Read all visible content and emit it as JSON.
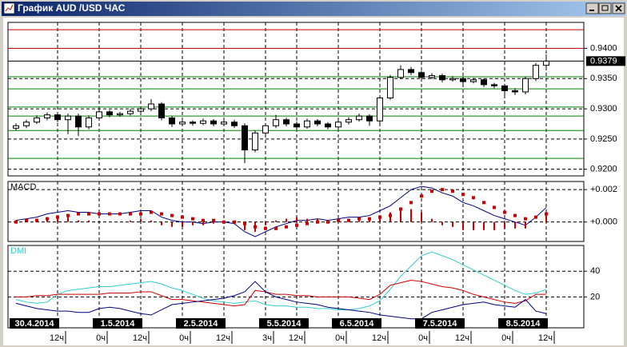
{
  "window": {
    "title": "График AUD /USD ЧАС"
  },
  "chart_data": [
    {
      "type": "candlestick",
      "categories": [
        null,
        null,
        null,
        null,
        "12ч",
        null,
        null,
        null,
        "0ч",
        null,
        null,
        null,
        "12ч",
        null,
        null,
        null,
        "0ч",
        null,
        null,
        null,
        "12ч",
        null,
        null,
        null,
        "3ч",
        null,
        null,
        "12ч",
        null,
        null,
        null,
        "0ч",
        null,
        null,
        null,
        "12ч",
        null,
        null,
        null,
        "0ч",
        null,
        null,
        null,
        "12ч",
        null,
        null,
        null,
        "0ч",
        null,
        null,
        null,
        "12ч"
      ],
      "dates": [
        "30.4.2014",
        null,
        null,
        null,
        null,
        null,
        null,
        null,
        "1.5.2014",
        null,
        null,
        null,
        null,
        null,
        null,
        null,
        "2.5.2014",
        null,
        null,
        null,
        null,
        null,
        null,
        null,
        "5.5.2014",
        null,
        null,
        null,
        null,
        null,
        null,
        "6.5.2014",
        null,
        null,
        null,
        null,
        null,
        null,
        null,
        "7.5.2014",
        null,
        null,
        null,
        null,
        null,
        null,
        null,
        "8.5.2014",
        null,
        null,
        null,
        null
      ],
      "open": [
        0.9268,
        0.9272,
        0.9278,
        0.9285,
        0.929,
        0.9282,
        0.9288,
        0.927,
        0.9285,
        0.9295,
        0.929,
        0.9292,
        0.9296,
        0.93,
        0.9308,
        0.9285,
        0.9275,
        0.9278,
        0.9276,
        0.928,
        0.9275,
        0.9278,
        0.9272,
        0.9232,
        0.926,
        0.9272,
        0.9282,
        0.9275,
        0.927,
        0.928,
        0.9275,
        0.927,
        0.9278,
        0.9282,
        0.9288,
        0.928,
        0.9318,
        0.9352,
        0.9365,
        0.936,
        0.9352,
        0.9355,
        0.9348,
        0.935,
        0.9345,
        0.9348,
        0.934,
        0.9338,
        0.933,
        0.9328,
        0.935,
        0.9372
      ],
      "high": [
        0.9276,
        0.9282,
        0.9289,
        0.9294,
        0.9294,
        0.9292,
        0.9292,
        0.9289,
        0.9299,
        0.9298,
        0.9295,
        0.93,
        0.9304,
        0.9316,
        0.9311,
        0.9288,
        0.9282,
        0.9281,
        0.9284,
        0.9283,
        0.9281,
        0.9282,
        0.9276,
        0.9264,
        0.9276,
        0.929,
        0.9285,
        0.9279,
        0.9284,
        0.9283,
        0.9278,
        0.9281,
        0.9286,
        0.9292,
        0.9291,
        0.9322,
        0.9356,
        0.9372,
        0.9369,
        0.9363,
        0.9359,
        0.9358,
        0.9354,
        0.9353,
        0.9351,
        0.935,
        0.9343,
        0.9341,
        0.9334,
        0.9353,
        0.9376,
        0.939
      ],
      "low": [
        0.9264,
        0.9268,
        0.9275,
        0.9281,
        0.9278,
        0.9258,
        0.9255,
        0.9266,
        0.9281,
        0.9286,
        0.9287,
        0.9289,
        0.9293,
        0.9296,
        0.9281,
        0.927,
        0.9272,
        0.9272,
        0.9273,
        0.9271,
        0.9272,
        0.9268,
        0.921,
        0.9228,
        0.9256,
        0.9268,
        0.9271,
        0.9266,
        0.9267,
        0.9271,
        0.9266,
        0.9266,
        0.9274,
        0.9279,
        0.9272,
        0.9276,
        0.9315,
        0.9349,
        0.9356,
        0.9348,
        0.9349,
        0.9344,
        0.9345,
        0.9341,
        0.9342,
        0.9336,
        0.9334,
        0.9318,
        0.9323,
        0.9324,
        0.9346,
        0.9368
      ],
      "close": [
        0.9272,
        0.9278,
        0.9285,
        0.929,
        0.9282,
        0.9288,
        0.927,
        0.9285,
        0.9295,
        0.929,
        0.9292,
        0.9296,
        0.93,
        0.9308,
        0.9285,
        0.9275,
        0.9278,
        0.9276,
        0.928,
        0.9275,
        0.9278,
        0.9272,
        0.9232,
        0.926,
        0.9272,
        0.9282,
        0.9275,
        0.927,
        0.928,
        0.9275,
        0.927,
        0.9278,
        0.9282,
        0.9288,
        0.928,
        0.9318,
        0.9352,
        0.9365,
        0.936,
        0.9352,
        0.9355,
        0.9348,
        0.935,
        0.9345,
        0.9348,
        0.934,
        0.9338,
        0.933,
        0.9328,
        0.935,
        0.9372,
        0.9379
      ],
      "up_color": "#ffffff",
      "down_color": "#000000",
      "ylim": [
        0.9189,
        0.9443
      ],
      "yticks": [
        {
          "value": 0.92,
          "label": "0.9200"
        },
        {
          "value": 0.925,
          "label": "0.9250"
        },
        {
          "value": 0.93,
          "label": "0.9300"
        },
        {
          "value": 0.935,
          "label": "0.9350"
        },
        {
          "value": 0.94,
          "label": "0.9400"
        }
      ],
      "grid": true,
      "levels": [
        {
          "value": 0.9431,
          "color": "#cc0000"
        },
        {
          "value": 0.94,
          "color": "#cc0000"
        },
        {
          "value": 0.9353,
          "color": "#008000"
        },
        {
          "value": 0.9333,
          "color": "#008000"
        },
        {
          "value": 0.9303,
          "color": "#008000"
        },
        {
          "value": 0.9288,
          "color": "#008000"
        },
        {
          "value": 0.9264,
          "color": "#008000"
        },
        {
          "value": 0.9218,
          "color": "#008000"
        }
      ],
      "last_price": {
        "value": 0.9379,
        "label": "0.9379"
      }
    },
    {
      "type": "macd",
      "title": "MACD",
      "ylim": [
        -0.0012,
        0.0025
      ],
      "yticks": [
        {
          "value": 0.002,
          "label": "+0.002"
        },
        {
          "value": 0,
          "label": "+0.000"
        }
      ],
      "series": [
        {
          "style": "line",
          "color": "#000080",
          "values": [
            0.0001,
            0.0002,
            0.0003,
            0.0005,
            0.0006,
            0.0007,
            0.0006,
            0.0006,
            0.0005,
            0.0005,
            0.0005,
            0.0006,
            0.0007,
            0.0007,
            0.0003,
            0.0001,
            0,
            0,
            -0.0001,
            0,
            0,
            -0.0001,
            -0.0006,
            -0.0009,
            -0.0006,
            -0.0003,
            -0.0001,
            0.0001,
            0.0001,
            0.0002,
            0.0001,
            0.0002,
            0.0003,
            0.0003,
            0.0004,
            0.0007,
            0.001,
            0.0015,
            0.002,
            0.0022,
            0.0021,
            0.0018,
            0.0016,
            0.0012,
            0.001,
            0.0007,
            0.0004,
            0.0002,
            0,
            -0.0002,
            0.0003,
            0.0009
          ]
        },
        {
          "style": "dots",
          "color": "#cc0000",
          "values": [
            0,
            0.0001,
            0.0001,
            0.0002,
            0.0003,
            0.0004,
            0.0005,
            0.0005,
            0.0005,
            0.0005,
            0.0005,
            0.0005,
            0.0005,
            0.0006,
            0.0005,
            0.0004,
            0.0003,
            0.0002,
            0.0001,
            0.0001,
            0,
            0,
            -0.0001,
            -0.0003,
            -0.0004,
            -0.0004,
            -0.0003,
            -0.0002,
            -0.0001,
            0,
            0,
            0.0001,
            0.0001,
            0.0002,
            0.0002,
            0.0003,
            0.0004,
            0.0008,
            0.0012,
            0.0016,
            0.0019,
            0.002,
            0.0019,
            0.0017,
            0.0015,
            0.0012,
            0.0009,
            0.0006,
            0.0004,
            0.0002,
            0.0003,
            0.0005
          ]
        },
        {
          "style": "bars",
          "color": "#cc0000",
          "values": [
            0.0001,
            0.0001,
            0.0002,
            0.0003,
            0.0003,
            0.0003,
            0.0001,
            0.0001,
            0,
            0,
            0,
            0.0001,
            0.0002,
            0.0001,
            -0.0002,
            -0.0003,
            -0.0003,
            -0.0002,
            -0.0002,
            -0.0001,
            0,
            -0.0001,
            -0.0005,
            -0.0006,
            -0.0002,
            0.0001,
            0.0002,
            0.0003,
            0.0002,
            0.0002,
            0.0001,
            0.0001,
            0.0002,
            0.0001,
            0.0002,
            0.0004,
            0.0006,
            0.0007,
            0.0008,
            0.0006,
            0.0002,
            -0.0002,
            -0.0003,
            -0.0005,
            -0.0005,
            -0.0005,
            -0.0005,
            -0.0004,
            -0.0004,
            -0.0004,
            0,
            0.0004
          ]
        }
      ]
    },
    {
      "type": "line",
      "title": "DMI",
      "title_color": "#33cccc",
      "ylim": [
        -4,
        60
      ],
      "yticks": [
        20,
        40
      ],
      "series": [
        {
          "color": "#33cccc",
          "values": [
            18,
            16,
            15,
            16,
            22,
            25,
            26,
            27,
            28,
            28,
            29,
            30,
            31,
            32,
            30,
            27,
            25,
            22,
            19,
            17,
            16,
            15,
            16,
            17,
            14,
            13,
            13,
            12,
            12,
            11,
            11,
            10,
            10,
            11,
            13,
            17,
            26,
            36,
            44,
            52,
            55,
            52,
            49,
            45,
            41,
            37,
            33,
            29,
            25,
            22,
            23,
            26
          ]
        },
        {
          "color": "#cc0000",
          "values": [
            20,
            20,
            21,
            21,
            22,
            22,
            22,
            22,
            22,
            23,
            23,
            23,
            24,
            24,
            21,
            18,
            18,
            17,
            16,
            15,
            14,
            13,
            14,
            25,
            24,
            22,
            22,
            21,
            21,
            20,
            20,
            20,
            20,
            19,
            18,
            22,
            29,
            31,
            33,
            32,
            30,
            28,
            27,
            25,
            22,
            20,
            18,
            16,
            15,
            17,
            22,
            22
          ]
        },
        {
          "color": "#000080",
          "values": [
            15,
            13,
            11,
            10,
            9,
            9,
            8,
            8,
            11,
            12,
            11,
            9,
            7,
            6,
            10,
            14,
            15,
            16,
            17,
            18,
            19,
            21,
            24,
            32,
            24,
            20,
            18,
            16,
            15,
            14,
            12,
            11,
            10,
            9,
            8,
            6,
            5,
            4,
            3,
            3,
            8,
            10,
            12,
            14,
            15,
            16,
            14,
            13,
            12,
            18,
            9,
            7
          ]
        }
      ]
    }
  ]
}
